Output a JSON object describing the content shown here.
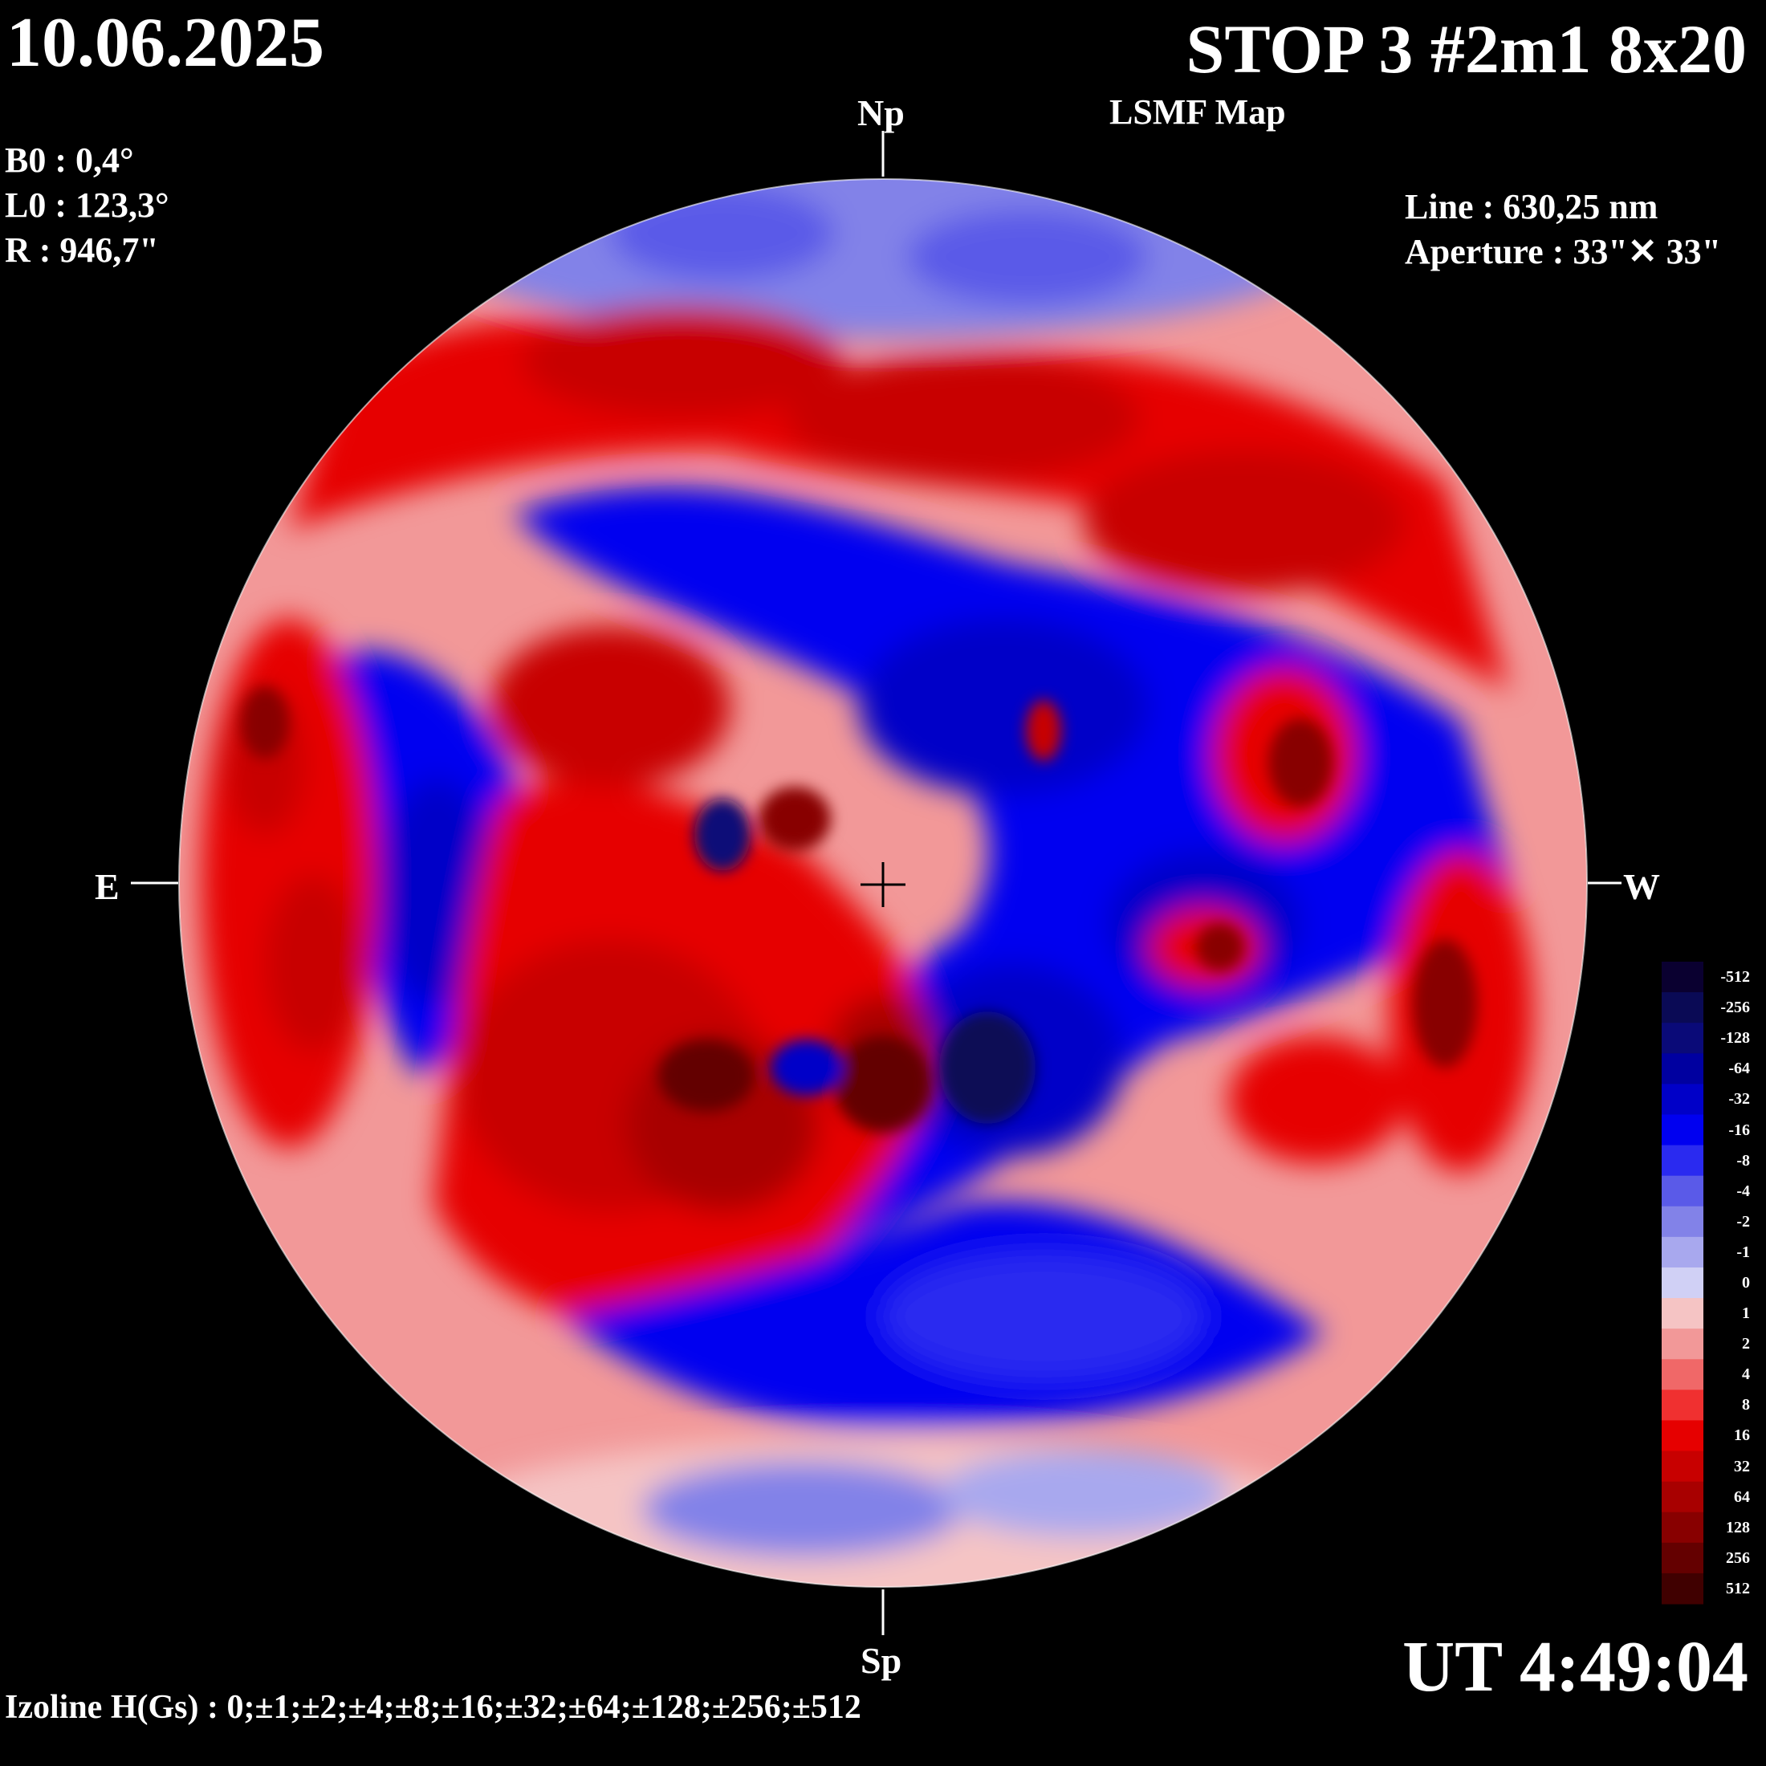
{
  "header": {
    "date": "10.06.2025",
    "title": "STOP 3 #2m1 8x20",
    "subtitle": "LSMF  Map"
  },
  "ephemeris": {
    "b0": "B0 : 0,4°",
    "l0": "L0 : 123,3°",
    "r": "R  : 946,7\""
  },
  "instrument": {
    "line": "Line :  630,25 nm",
    "aperture": "Aperture : 33\"✕ 33\""
  },
  "orientation": {
    "north": "Np",
    "south": "Sp",
    "east": "E",
    "west": "W"
  },
  "footer": {
    "ut": "UT 4:49:04",
    "izoline": "Izoline H(Gs) : 0;±1;±2;±4;±8;±16;±32;±64;±128;±256;±512"
  },
  "colorbar": {
    "levels": [
      {
        "label": "-512",
        "color": "#0a0030"
      },
      {
        "label": "-256",
        "color": "#0a0a55"
      },
      {
        "label": "-128",
        "color": "#0a0a78"
      },
      {
        "label": "-64",
        "color": "#0000a0"
      },
      {
        "label": "-32",
        "color": "#0000c8"
      },
      {
        "label": "-16",
        "color": "#0000f0"
      },
      {
        "label": "-8",
        "color": "#2a2af0"
      },
      {
        "label": "-4",
        "color": "#5a5ae8"
      },
      {
        "label": "-2",
        "color": "#8282e8"
      },
      {
        "label": "-1",
        "color": "#a8a8ee"
      },
      {
        "label": "0",
        "color": "#d0d0f5"
      },
      {
        "label": "1",
        "color": "#f5c4c4"
      },
      {
        "label": "2",
        "color": "#f29898"
      },
      {
        "label": "4",
        "color": "#f06868"
      },
      {
        "label": "8",
        "color": "#f03030"
      },
      {
        "label": "16",
        "color": "#e60000"
      },
      {
        "label": "32",
        "color": "#c80000"
      },
      {
        "label": "64",
        "color": "#a80000"
      },
      {
        "label": "128",
        "color": "#880000"
      },
      {
        "label": "256",
        "color": "#640000"
      },
      {
        "label": "512",
        "color": "#400000"
      }
    ]
  }
}
